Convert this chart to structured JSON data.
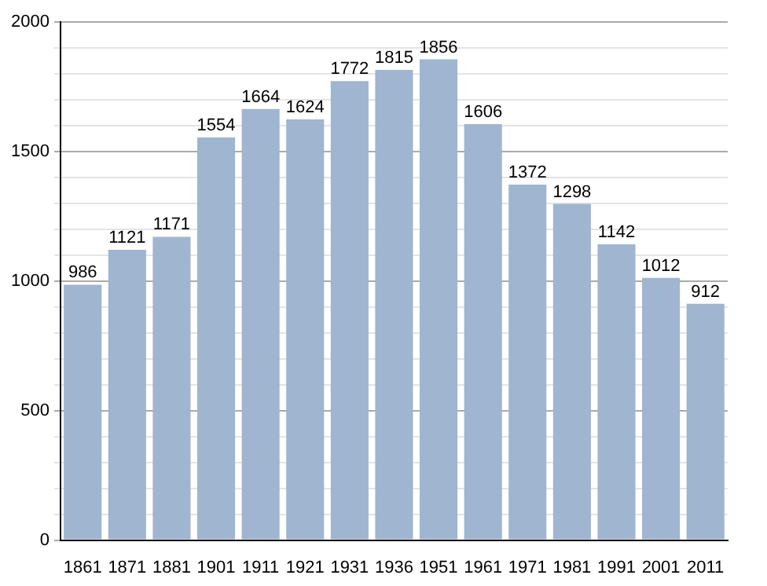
{
  "chart_data": {
    "type": "bar",
    "categories": [
      "1861",
      "1871",
      "1881",
      "1901",
      "1911",
      "1921",
      "1931",
      "1936",
      "1951",
      "1961",
      "1971",
      "1981",
      "1991",
      "2001",
      "2011"
    ],
    "values": [
      986,
      1121,
      1171,
      1554,
      1664,
      1624,
      1772,
      1815,
      1856,
      1606,
      1372,
      1298,
      1142,
      1012,
      912
    ],
    "color": "#9fb5d0",
    "data_labels": true,
    "ylim": [
      0,
      2000
    ],
    "yticks": [
      0,
      {
        "value": 100,
        "label": null
      },
      {
        "value": 200,
        "label": null
      },
      {
        "value": 300,
        "label": null
      },
      {
        "value": 400,
        "label": null
      },
      500,
      {
        "value": 600,
        "label": null
      },
      {
        "value": 700,
        "label": null
      },
      {
        "value": 800,
        "label": null
      },
      {
        "value": 900,
        "label": null
      },
      1000,
      {
        "value": 1100,
        "label": null
      },
      {
        "value": 1200,
        "label": null
      },
      {
        "value": 1300,
        "label": null
      },
      {
        "value": 1400,
        "label": null
      },
      1500,
      {
        "value": 1600,
        "label": null
      },
      {
        "value": 1700,
        "label": null
      },
      {
        "value": 1800,
        "label": null
      },
      {
        "value": 1900,
        "label": null
      },
      2000
    ],
    "grid": true
  }
}
